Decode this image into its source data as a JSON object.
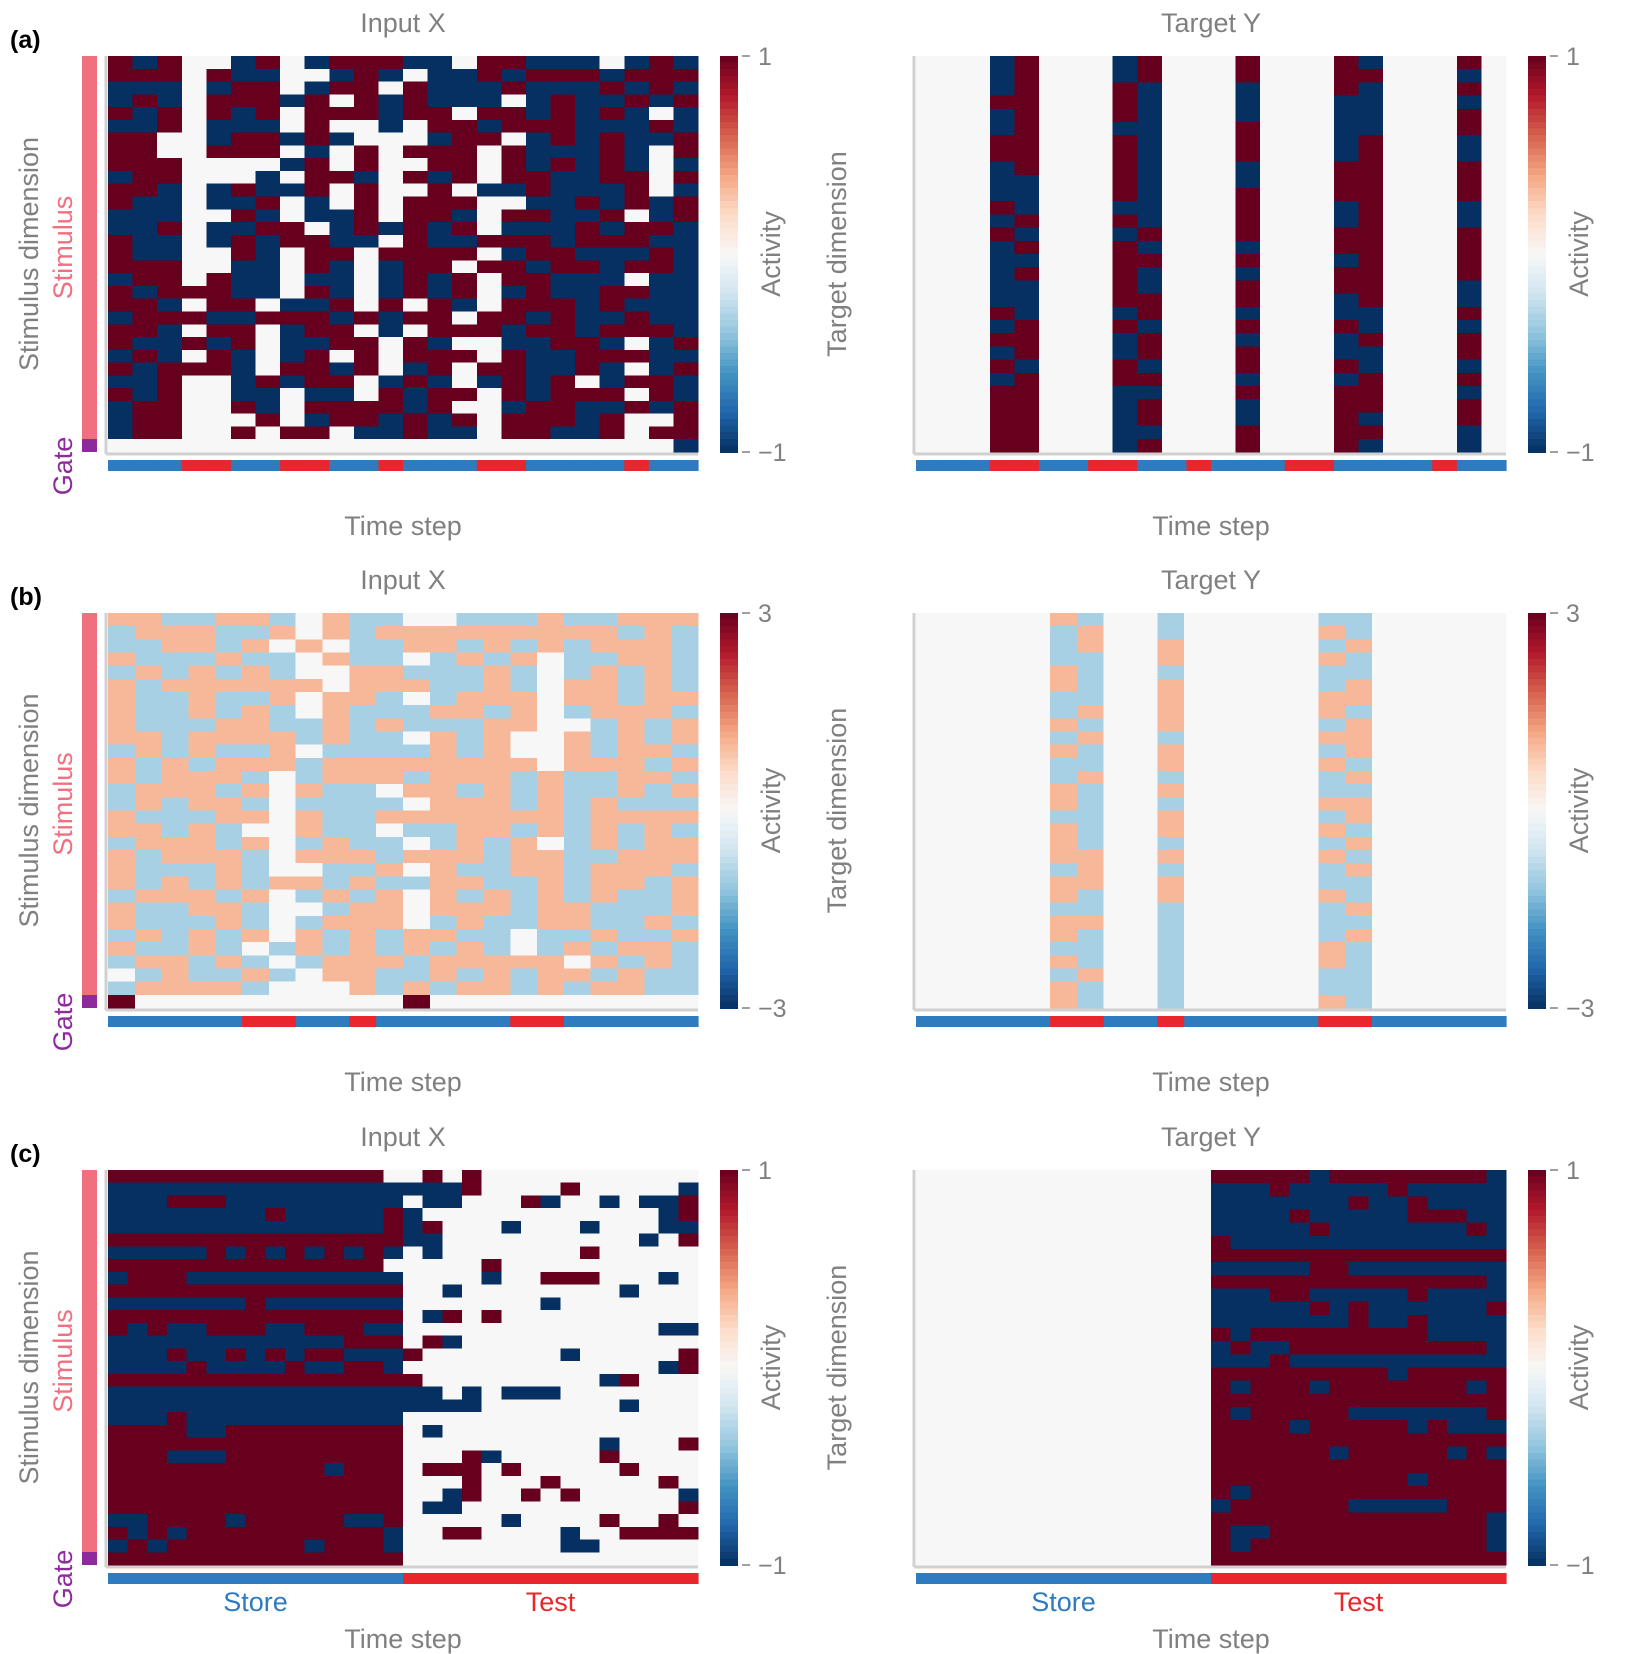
{
  "colormap": {
    "name": "RdBu_r",
    "stops": [
      "#053061",
      "#2166ac",
      "#4393c3",
      "#92c5de",
      "#d1e5f0",
      "#f7f7f7",
      "#fddbc7",
      "#f4a582",
      "#d6604d",
      "#b2182b",
      "#67001f"
    ]
  },
  "colors": {
    "text": "#808080",
    "label": "#000000",
    "axis_line": "#d0d0d0",
    "store": "#2f7bbf",
    "test": "#e8262b",
    "stimulus_bar": "#f07080",
    "gate_bar": "#8e2b9c"
  },
  "chart_data": [
    {
      "type": "heatmap",
      "panel": "(a)",
      "title": "Input X",
      "xlabel": "Time step",
      "ylabel": "Stimulus dimension",
      "row_groups": [
        "Stimulus",
        "Gate"
      ],
      "colorbar": {
        "label": "Activity",
        "max_label": "1",
        "min_label": "−1",
        "range": [
          -1,
          1
        ]
      },
      "value_levels": [
        -1,
        0,
        1
      ],
      "n_cols": 24,
      "n_rows": 31,
      "phases": [
        "store",
        "store",
        "store",
        "test",
        "test",
        "store",
        "store",
        "test",
        "test",
        "store",
        "store",
        "test",
        "store",
        "store",
        "store",
        "test",
        "test",
        "store",
        "store",
        "store",
        "store",
        "test",
        "store",
        "store"
      ],
      "rows": [
        "+-+00-+0-+++--0++---0-+-",
        "+++0+--00-+-0--+-+++-+++",
        "---0-++0-++0+---+---+-+-",
        "-+-0+++-+0+-+---0-+--+-+",
        "+-+0+-+0+++-++0++-+-+-0-",
        "--+0---0+00-0++-+++---+-",
        "++00-++-+-000-++0-+-+--+",
        "++00+++0-0+0+++0+---+-0+",
        "+++0000-+0+00++0+-+-+-0-",
        "-++000-0++-0+-+0++--++0+",
        "++-0-+--+0+00+0--+---+0-",
        "+--0--+0-0+0+++00--+-+-+",
        "---00+-0--+0++-0++--+0-+",
        "--+0--++0-+-+-+0---+-++-",
        "+--0-+-++--0+--+++-+++--",
        "+--00+-0++0++++0-++---+-",
        "+++00--0+-0-++0++-++-++-",
        "-++0+--0--0-+-+0++---0--",
        "+-+++--0+-0-+-+0-+--++--",
        "++-0++0--+0+0+-0+++-+---",
        "-+++--+++-+-++0++-+--+--",
        "++-0++0-++0-0+++-++-+++-",
        "+--+-+0--++0+-00--++-0-+",
        "-+-0+-0-+0+0+++0+--+++--",
        "+-+++-0++-+0-+0++--+-0-+",
        "--+00-+-++0-+-0-+-+0-++-",
        "+-+00--0--0+-++0+-+++0+-",
        "-++00+-0++++-+00-++--+-+",
        "-++000+0-++-+-+0+++-+00+",
        "-++00+0++0--+--0++--+0++",
        "00000000000000000000000-"
      ]
    },
    {
      "type": "heatmap",
      "panel": "(a)",
      "title": "Target Y",
      "xlabel": "Time step",
      "ylabel": "Target dimension",
      "colorbar": {
        "label": "Activity",
        "max_label": "1",
        "min_label": "−1",
        "range": [
          -1,
          1
        ]
      },
      "value_levels": [
        -1,
        0,
        1
      ],
      "n_cols": 24,
      "n_rows": 30,
      "phases": [
        "store",
        "store",
        "store",
        "test",
        "test",
        "store",
        "store",
        "test",
        "test",
        "store",
        "store",
        "test",
        "store",
        "store",
        "store",
        "test",
        "test",
        "store",
        "store",
        "store",
        "store",
        "test",
        "store",
        "store"
      ],
      "rows": [
        "000-+000-+000+000+-000+0",
        "000-+000-+000+000++000-0",
        "000-+000+-000-000+-000+0",
        "000++000+-000-000--000-0",
        "000-+000+-000-000--000+0",
        "000-+000--000+000--000+0",
        "000++000+-000+000-+000-0",
        "000++000+-000+000-+000-0",
        "000-+000+-000-000++000+0",
        "000--000+-000-000++000+0",
        "000--000+-000+000++000+0",
        "000+-000--000+000-+000-0",
        "000-+000+-000+000-+000-0",
        "000+-000-+000+000++000+0",
        "000-+000+-000-000++000+0",
        "000--000++000+000-+000+0",
        "000-+000+-000-000++000+0",
        "000--000+-000+000++000-0",
        "000--000++000+000-+000-0",
        "000+-000-+000-000--000+0",
        "000-+000+-000+000+-000-0",
        "000++000-+000-000-+000+0",
        "000-+000-+000+000--000+0",
        "000+-000+-000+000+-000-0",
        "000-+000++000-000-+000+0",
        "000++000--000+000++000-0",
        "000++000-+000-000++000+0",
        "000++000-+000-000+-000+0",
        "000++000--000+000++000-0",
        "000++000-+000+000+-000-0"
      ]
    },
    {
      "type": "heatmap",
      "panel": "(b)",
      "title": "Input X",
      "xlabel": "Time step",
      "ylabel": "Stimulus dimension",
      "row_groups": [
        "Stimulus",
        "Gate"
      ],
      "colorbar": {
        "label": "Activity",
        "max_label": "3",
        "min_label": "−3",
        "range": [
          -3,
          3
        ]
      },
      "value_levels": [
        -1,
        0,
        1
      ],
      "n_cols": 22,
      "n_rows": 30,
      "phases": [
        "store",
        "store",
        "store",
        "store",
        "store",
        "test",
        "test",
        "store",
        "store",
        "test",
        "store",
        "store",
        "store",
        "store",
        "store",
        "test",
        "test",
        "store",
        "store",
        "store",
        "store",
        "store"
      ],
      "rows": [
        "++--++-0+--00---+--+++",
        "-+++--+0+-+++++++++-+-",
        "--++-+0+0--++-+-+-+++-",
        "+---+--0+--0-+-+0--++-",
        "-+-+-+-00++---+-0-+-+-",
        "+-++++++0+++--+-0++-+-",
        "+--+--+0++-0-+++0++-++",
        "+--+-+-0+---++-+0-+++-",
        "+---++--+-+---++00-+-+",
        "++-++++-+--0+-+00+-+-+",
        "-+-+--+0----+-+00+-++-",
        "+-+-+++-++++++++0+++-+",
        "+-+++-0-+++-+++-+--++-",
        "-+++-+0+--0++-+-+--+-+",
        "-+-++-0----0+++-+-+---",
        "+---++0+--+++++++-++++",
        "++-+-00+--0--++-+-+-+-",
        "-+++-+0-+--0-+-+0-+-++",
        "+-+++-0+++-+++-++--+++",
        "+---+-00--+0+--++-+++-",
        "+-+-+-++-+--++--+-++-+",
        "-+++-+0-+-+0+-+-+-+--+",
        "+--++-00-++0+++-++---+",
        "+---+-0-+++0-+--++--+-",
        "-+-+-+0+-+-++--0--+--+",
        "+--+-0-+-+-+-+-0-+-++-",
        "-++-+-0-+++-+++++0+-+-",
        "0-+--+-0++--+-+-++-+--",
        "-++++-000+-+-++-+-++--",
        "R0000000000R0000000000"
      ]
    },
    {
      "type": "heatmap",
      "panel": "(b)",
      "title": "Target Y",
      "xlabel": "Time step",
      "ylabel": "Target dimension",
      "colorbar": {
        "label": "Activity",
        "max_label": "3",
        "min_label": "−3",
        "range": [
          -3,
          3
        ]
      },
      "value_levels": [
        -1,
        0,
        1
      ],
      "n_cols": 22,
      "n_rows": 30,
      "phases": [
        "store",
        "store",
        "store",
        "store",
        "store",
        "test",
        "test",
        "store",
        "store",
        "test",
        "store",
        "store",
        "store",
        "store",
        "store",
        "test",
        "test",
        "store",
        "store",
        "store",
        "store",
        "store"
      ],
      "rows": [
        "00000+-00-00000--00000",
        "00000-+00-00000+-00000",
        "00000-+00+00000-+00000",
        "00000--00+00000+-00000",
        "00000+-00-00000--00000",
        "00000+-00+00000-+00000",
        "00000--00+00000++00000",
        "00000-+00+00000+-00000",
        "00000+-00+00000-+00000",
        "00000-+00-00000++00000",
        "00000+-00+00000-+00000",
        "00000--00+00000+-00000",
        "00000-+00-00000-+00000",
        "00000+-00+00000--00000",
        "00000+-00-00000++00000",
        "00000--00+00000-+00000",
        "00000+-00+00000+-00000",
        "00000+-00-00000-+00000",
        "00000++00+00000+-00000",
        "00000-+00-00000-+00000",
        "00000++00+00000--00000",
        "00000+-00+00000+-00000",
        "00000--00-00000-+00000",
        "00000++00-00000--00000",
        "00000+-00-00000-+00000",
        "00000--00-00000+-00000",
        "00000+-00-00000+-00000",
        "00000-+00-00000--00000",
        "00000+-00-00000--00000",
        "00000+-00-00000+-00000"
      ]
    },
    {
      "type": "heatmap",
      "panel": "(c)",
      "title": "Input X",
      "xlabel": "Time step",
      "ylabel": "Stimulus dimension",
      "row_groups": [
        "Stimulus",
        "Gate"
      ],
      "colorbar": {
        "label": "Activity",
        "max_label": "1",
        "min_label": "−1",
        "range": [
          -1,
          1
        ]
      },
      "phase_labels": {
        "store": "Store",
        "test": "Test"
      },
      "value_levels": [
        -1,
        0,
        1
      ],
      "n_cols": 30,
      "n_rows": 31,
      "phases": [
        "store",
        "store",
        "store",
        "store",
        "store",
        "store",
        "store",
        "store",
        "store",
        "store",
        "store",
        "store",
        "store",
        "store",
        "store",
        "test",
        "test",
        "test",
        "test",
        "test",
        "test",
        "test",
        "test",
        "test",
        "test",
        "test",
        "test",
        "test",
        "test",
        "test"
      ],
      "rows": [
        "++++++++++++++00+0+00000000000",
        "------------------+0000+00000-",
        "---+++---------0--000+-00-0--+",
        "--------+-----+-000000000000-+",
        "--------------+-+000-000-000--",
        "+++++++++++++++--0000000000-0+",
        "-----+-+-+-+-+-0-0000000+00000",
        "++++++++++++++00000+0000000000",
        "-+++-----------0000-00+++000-0",
        "+++++++++++++++00-00000000-000",
        "-------+-------0000000-0000000",
        "+++++++++++++++0-+0+0000000000",
        "+-+--+++--+++--0000000000000--",
        "------------+++0+-000000000000",
        "---+--+-+-++---+0000000-00000+",
        "----+----+--++-0000000000000-+",
        "++++++++++++++++000000000-+000",
        "-----------------0-0---0000000",
        "-------------------0000000-000",
        "---+-----------000000000000000",
        "++++--+++++++++0-0000000000000",
        "+++++++++++++++0000000000-000+",
        "+++---+++++++++000+-00000+0000",
        "+++++++++++-+++0+++0+00000+000",
        "+++++++++++++++000+000+00000+0",
        "+++++++++++++++00-+00+0+00000-",
        "+++++++++++++++0--00000000000+",
        "--++++-+++++--+00000-0000+00+0",
        "+-+-++++++++++-00++0000-00++++",
        "-+-+++++++-+++-00000000--00000",
        "+++++++++++++++000000000000000"
      ]
    },
    {
      "type": "heatmap",
      "panel": "(c)",
      "title": "Target Y",
      "xlabel": "Time step",
      "ylabel": "Target dimension",
      "colorbar": {
        "label": "Activity",
        "max_label": "1",
        "min_label": "−1",
        "range": [
          -1,
          1
        ]
      },
      "phase_labels": {
        "store": "Store",
        "test": "Test"
      },
      "value_levels": [
        -1,
        0,
        1
      ],
      "n_cols": 30,
      "n_rows": 30,
      "phases": [
        "store",
        "store",
        "store",
        "store",
        "store",
        "store",
        "store",
        "store",
        "store",
        "store",
        "store",
        "store",
        "store",
        "store",
        "store",
        "test",
        "test",
        "test",
        "test",
        "test",
        "test",
        "test",
        "test",
        "test",
        "test",
        "test",
        "test",
        "test",
        "test",
        "test"
      ],
      "rows": [
        "000000000000000+++++-++++++++-",
        "000000000000000---+-----+-----",
        "000000000000000-------+--+----",
        "000000000000000----+-----+++--",
        "000000000000000-----+-------+-",
        "000000000000000+--------------",
        "000000000000000+++++++++++++++",
        "000000000000000-----++--------",
        "000000000000000++++++++++++++-",
        "000000000000000---++-----+----",
        "000000000000000-----+-+------+",
        "000000000000000-------+--+----",
        "000000000000000+-+++++++++----",
        "000000000000000-+--++++++++++-",
        "000000000000000---+-----------",
        "000000000000000+++++++++-+++++",
        "000000000000000+-+++-+++++++-+",
        "000000000000000+++++++++++++++",
        "000000000000000+-+++++-------+",
        "000000000000000++++-+++++-+---",
        "000000000000000+++++++++++++++",
        "000000000000000++++++-+++++-+-",
        "000000000000000+++++++++++++++",
        "000000000000000++++++++++-++++",
        "000000000000000+-+++++++++++++",
        "000000000000000-++++++-----+++",
        "000000000000000++++++++++++++-",
        "000000000000000+--+++++++++++-",
        "000000000000000+-++++++++++++-",
        "000000000000000+++++++++++++++"
      ]
    }
  ]
}
